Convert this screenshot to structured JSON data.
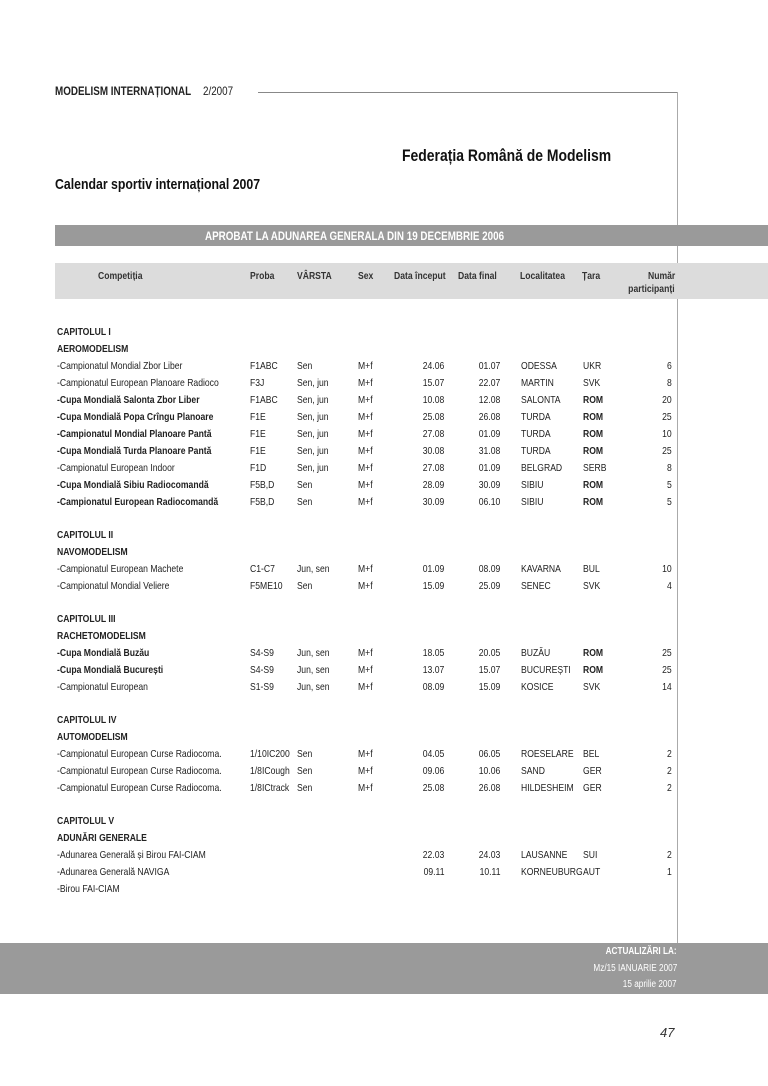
{
  "header": {
    "magazine_bold": "MODELISM INTERNAȚIONAL",
    "issue": "2/2007",
    "federation": "Federația Română de Modelism",
    "title": "Calendar sportiv internațional 2007",
    "approved": "APROBAT  LA ADUNAREA GENERALA DIN 19 DECEMBRIE 2006"
  },
  "columns": [
    "Competiția",
    "Proba",
    "VÂRSTA",
    "Sex",
    "Data început",
    "Data final",
    "Localitatea",
    "Țara",
    "Număr",
    "participanți"
  ],
  "sections": [
    {
      "chapter": "CAPITOLUL I",
      "category": "AEROMODELISM",
      "rows": [
        {
          "name": "-Campionatul Mondial Zbor Liber",
          "bold": false,
          "proba": "F1ABC",
          "varsta": "Sen",
          "sex": "M+f",
          "start": "24.06",
          "end": "01.07",
          "loc": "ODESSA",
          "tara": "UKR",
          "nr": "6"
        },
        {
          "name": "-Campionatul European Planoare Radioco",
          "bold": false,
          "proba": "F3J",
          "varsta": "Sen, jun",
          "sex": "M+f",
          "start": "15.07",
          "end": "22.07",
          "loc": "MARTIN",
          "tara": "SVK",
          "nr": "8"
        },
        {
          "name": "-Cupa Mondială Salonta Zbor Liber",
          "bold": true,
          "proba": "F1ABC",
          "varsta": "Sen, jun",
          "sex": "M+f",
          "start": "10.08",
          "end": "12.08",
          "loc": "SALONTA",
          "tara": "ROM",
          "nr": "20"
        },
        {
          "name": "-Cupa Mondială Popa Crîngu Planoare",
          "bold": true,
          "proba": "F1E",
          "varsta": "Sen, jun",
          "sex": "M+f",
          "start": "25.08",
          "end": "26.08",
          "loc": "TURDA",
          "tara": "ROM",
          "nr": "25"
        },
        {
          "name": "-Campionatul Mondial Planoare Pantă",
          "bold": true,
          "proba": "F1E",
          "varsta": "Sen, jun",
          "sex": "M+f",
          "start": "27.08",
          "end": "01.09",
          "loc": "TURDA",
          "tara": "ROM",
          "nr": "10"
        },
        {
          "name": "-Cupa Mondială Turda Planoare Pantă",
          "bold": true,
          "proba": "F1E",
          "varsta": "Sen, jun",
          "sex": "M+f",
          "start": "30.08",
          "end": "31.08",
          "loc": "TURDA",
          "tara": "ROM",
          "nr": "25"
        },
        {
          "name": "-Campionatul European Indoor",
          "bold": false,
          "proba": "F1D",
          "varsta": "Sen, jun",
          "sex": "M+f",
          "start": "27.08",
          "end": "01.09",
          "loc": "BELGRAD",
          "tara": "SERB",
          "nr": "8"
        },
        {
          "name": "-Cupa Mondială Sibiu Radiocomandă",
          "bold": true,
          "proba": "F5B,D",
          "varsta": "Sen",
          "sex": "M+f",
          "start": "28.09",
          "end": "30.09",
          "loc": "SIBIU",
          "tara": "ROM",
          "nr": "5"
        },
        {
          "name": "-Campionatul European Radiocomandă",
          "bold": true,
          "proba": "F5B,D",
          "varsta": "Sen",
          "sex": "M+f",
          "start": "30.09",
          "end": "06.10",
          "loc": "SIBIU",
          "tara": "ROM",
          "nr": "5"
        }
      ]
    },
    {
      "chapter": "CAPITOLUL II",
      "category": "NAVOMODELISM",
      "rows": [
        {
          "name": "-Campionatul European  Machete",
          "bold": false,
          "proba": "C1-C7",
          "varsta": "Jun, sen",
          "sex": "M+f",
          "start": "01.09",
          "end": "08.09",
          "loc": "KAVARNA",
          "tara": "BUL",
          "nr": "10"
        },
        {
          "name": "-Campionatul Mondial Veliere",
          "bold": false,
          "proba": "F5ME10",
          "varsta": "Sen",
          "sex": "M+f",
          "start": "15.09",
          "end": "25.09",
          "loc": "SENEC",
          "tara": "SVK",
          "nr": "4"
        }
      ]
    },
    {
      "chapter": "CAPITOLUL III",
      "category": "RACHETOMODELISM",
      "rows": [
        {
          "name": "-Cupa Mondială Buzău",
          "bold": true,
          "proba": "S4-S9",
          "varsta": "Jun, sen",
          "sex": "M+f",
          "start": "18.05",
          "end": "20.05",
          "loc": "BUZĂU",
          "tara": "ROM",
          "nr": "25"
        },
        {
          "name": "-Cupa Mondială București",
          "bold": true,
          "proba": "S4-S9",
          "varsta": "Jun, sen",
          "sex": "M+f",
          "start": "13.07",
          "end": "15.07",
          "loc": "BUCUREȘTI",
          "tara": "ROM",
          "nr": "25"
        },
        {
          "name": "-Campionatul European",
          "bold": false,
          "proba": "S1-S9",
          "varsta": "Jun, sen",
          "sex": "M+f",
          "start": "08.09",
          "end": "15.09",
          "loc": "KOSICE",
          "tara": "SVK",
          "nr": "14"
        }
      ]
    },
    {
      "chapter": "CAPITOLUL IV",
      "category": "AUTOMODELISM",
      "rows": [
        {
          "name": "-Campionatul European  Curse Radiocoma.",
          "bold": false,
          "proba": "1/10IC200",
          "varsta": "Sen",
          "sex": "M+f",
          "start": "04.05",
          "end": "06.05",
          "loc": "ROESELARE",
          "tara": "BEL",
          "nr": "2"
        },
        {
          "name": "-Campionatul European  Curse Radiocoma.",
          "bold": false,
          "proba": "1/8ICough",
          "varsta": "Sen",
          "sex": "M+f",
          "start": "09.06",
          "end": "10.06",
          "loc": "SAND",
          "tara": "GER",
          "nr": "2"
        },
        {
          "name": "-Campionatul European Curse Radiocoma.",
          "bold": false,
          "proba": "1/8ICtrack",
          "varsta": "Sen",
          "sex": "M+f",
          "start": "25.08",
          "end": "26.08",
          "loc": "HILDESHEIM",
          "tara": "GER",
          "nr": "2"
        }
      ]
    },
    {
      "chapter": "CAPITOLUL V",
      "category": "ADUNĂRI GENERALE",
      "rows": [
        {
          "name": "-Adunarea Generală și Birou FAI-CIAM",
          "bold": false,
          "proba": "",
          "varsta": "",
          "sex": "",
          "start": "22.03",
          "end": "24.03",
          "loc": "LAUSANNE",
          "tara": "SUI",
          "nr": "2"
        },
        {
          "name": "-Adunarea Generală NAVIGA",
          "bold": false,
          "proba": "",
          "varsta": "",
          "sex": "",
          "start": "09.11",
          "end": "10.11",
          "loc": "KORNEUBURG",
          "tara": "AUT",
          "nr": "1"
        },
        {
          "name": "-Birou FAI-CIAM",
          "bold": false,
          "proba": "",
          "varsta": "",
          "sex": "",
          "start": "",
          "end": "",
          "loc": "",
          "tara": "",
          "nr": ""
        }
      ]
    }
  ],
  "footer": {
    "label": "ACTUALIZĂRI LA:",
    "line1": "Mz/15 IANUARIE  2007",
    "line2": "15 aprilie 2007"
  },
  "page_number": "47",
  "colors": {
    "band": "#9a9a9a",
    "header_row": "#dcdcdc"
  }
}
